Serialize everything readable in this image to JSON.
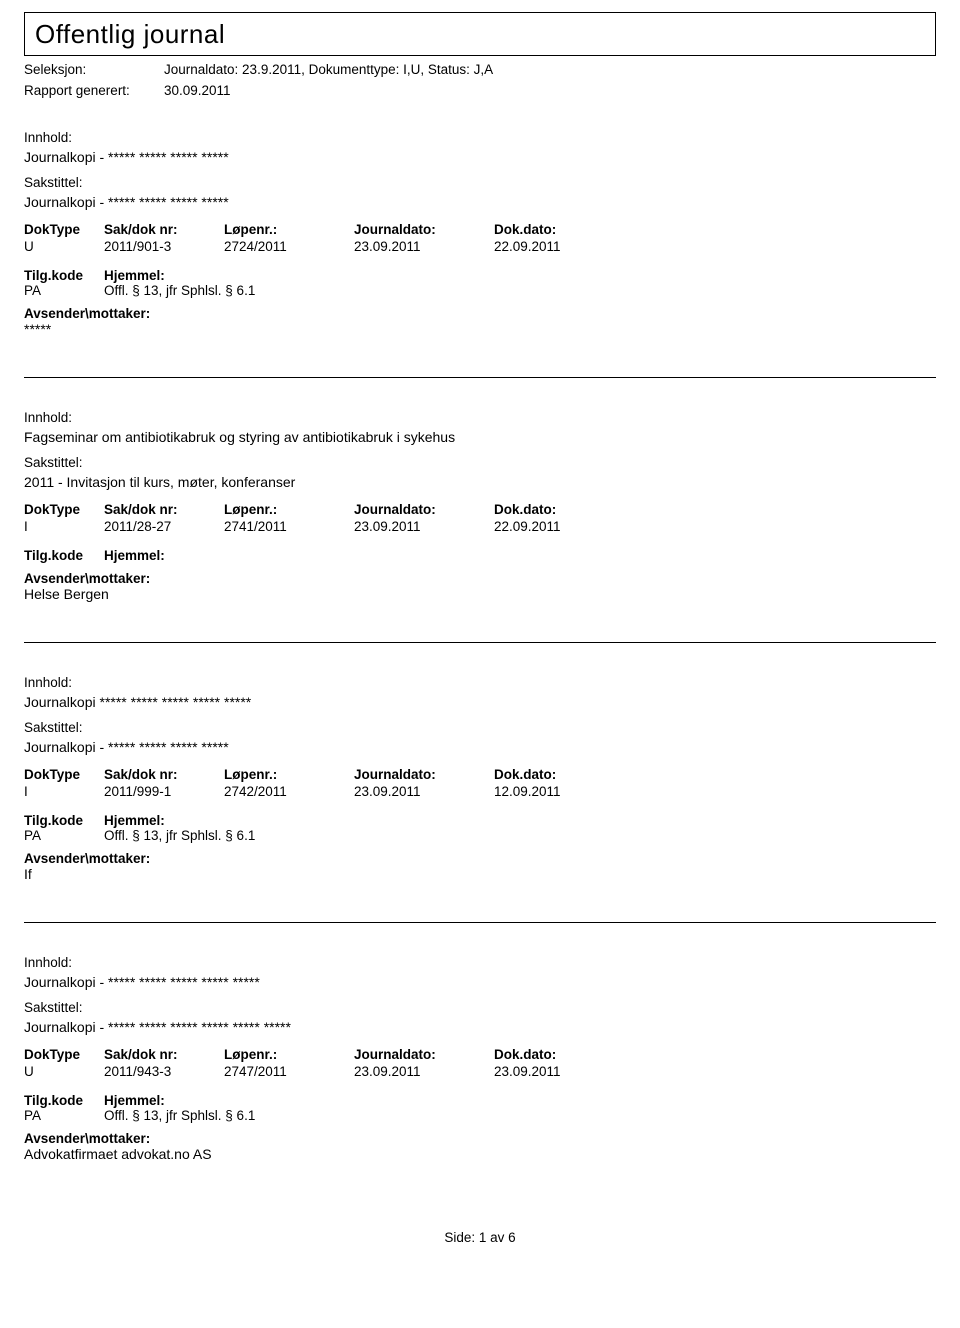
{
  "header": {
    "title": "Offentlig journal",
    "seleksjon_label": "Seleksjon:",
    "seleksjon_value": "Journaldato: 23.9.2011, Dokumenttype: I,U, Status: J,A",
    "rapport_label": "Rapport generert:",
    "rapport_value": "30.09.2011"
  },
  "labels": {
    "innhold": "Innhold:",
    "sakstittel": "Sakstittel:",
    "doktype": "DokType",
    "sakdok": "Sak/dok nr:",
    "lopenr": "Løpenr.:",
    "journaldato": "Journaldato:",
    "dokdato": "Dok.dato:",
    "tilgkode": "Tilg.kode",
    "hjemmel": "Hjemmel:",
    "avsender": "Avsender\\mottaker:"
  },
  "entries": [
    {
      "innhold": "Journalkopi - ***** ***** ***** *****",
      "sakstittel": "Journalkopi - ***** ***** ***** *****",
      "doktype": "U",
      "sakdok": "2011/901-3",
      "lopenr": "2724/2011",
      "journaldato": "23.09.2011",
      "dokdato": "22.09.2011",
      "tilgkode": "PA",
      "hjemmel": "Offl. § 13, jfr Sphlsl. § 6.1",
      "avsender": "*****"
    },
    {
      "innhold": "Fagseminar om antibiotikabruk og styring av antibiotikabruk i sykehus",
      "sakstittel": "2011 - Invitasjon til kurs, møter, konferanser",
      "doktype": "I",
      "sakdok": "2011/28-27",
      "lopenr": "2741/2011",
      "journaldato": "23.09.2011",
      "dokdato": "22.09.2011",
      "tilgkode": "",
      "hjemmel": "",
      "avsender": "Helse Bergen"
    },
    {
      "innhold": "Journalkopi ***** ***** ***** ***** *****",
      "sakstittel": "Journalkopi - ***** ***** ***** *****",
      "doktype": "I",
      "sakdok": "2011/999-1",
      "lopenr": "2742/2011",
      "journaldato": "23.09.2011",
      "dokdato": "12.09.2011",
      "tilgkode": "PA",
      "hjemmel": "Offl. § 13, jfr Sphlsl. § 6.1",
      "avsender": "If"
    },
    {
      "innhold": "Journalkopi - ***** ***** ***** ***** *****",
      "sakstittel": "Journalkopi - ***** ***** ***** ***** ***** *****",
      "doktype": "U",
      "sakdok": "2011/943-3",
      "lopenr": "2747/2011",
      "journaldato": "23.09.2011",
      "dokdato": "23.09.2011",
      "tilgkode": "PA",
      "hjemmel": "Offl. § 13, jfr Sphlsl. § 6.1",
      "avsender": "Advokatfirmaet advokat.no AS"
    }
  ],
  "footer": {
    "side_label": "Side:",
    "page_current": "1",
    "page_sep": "av",
    "page_total": "6"
  }
}
